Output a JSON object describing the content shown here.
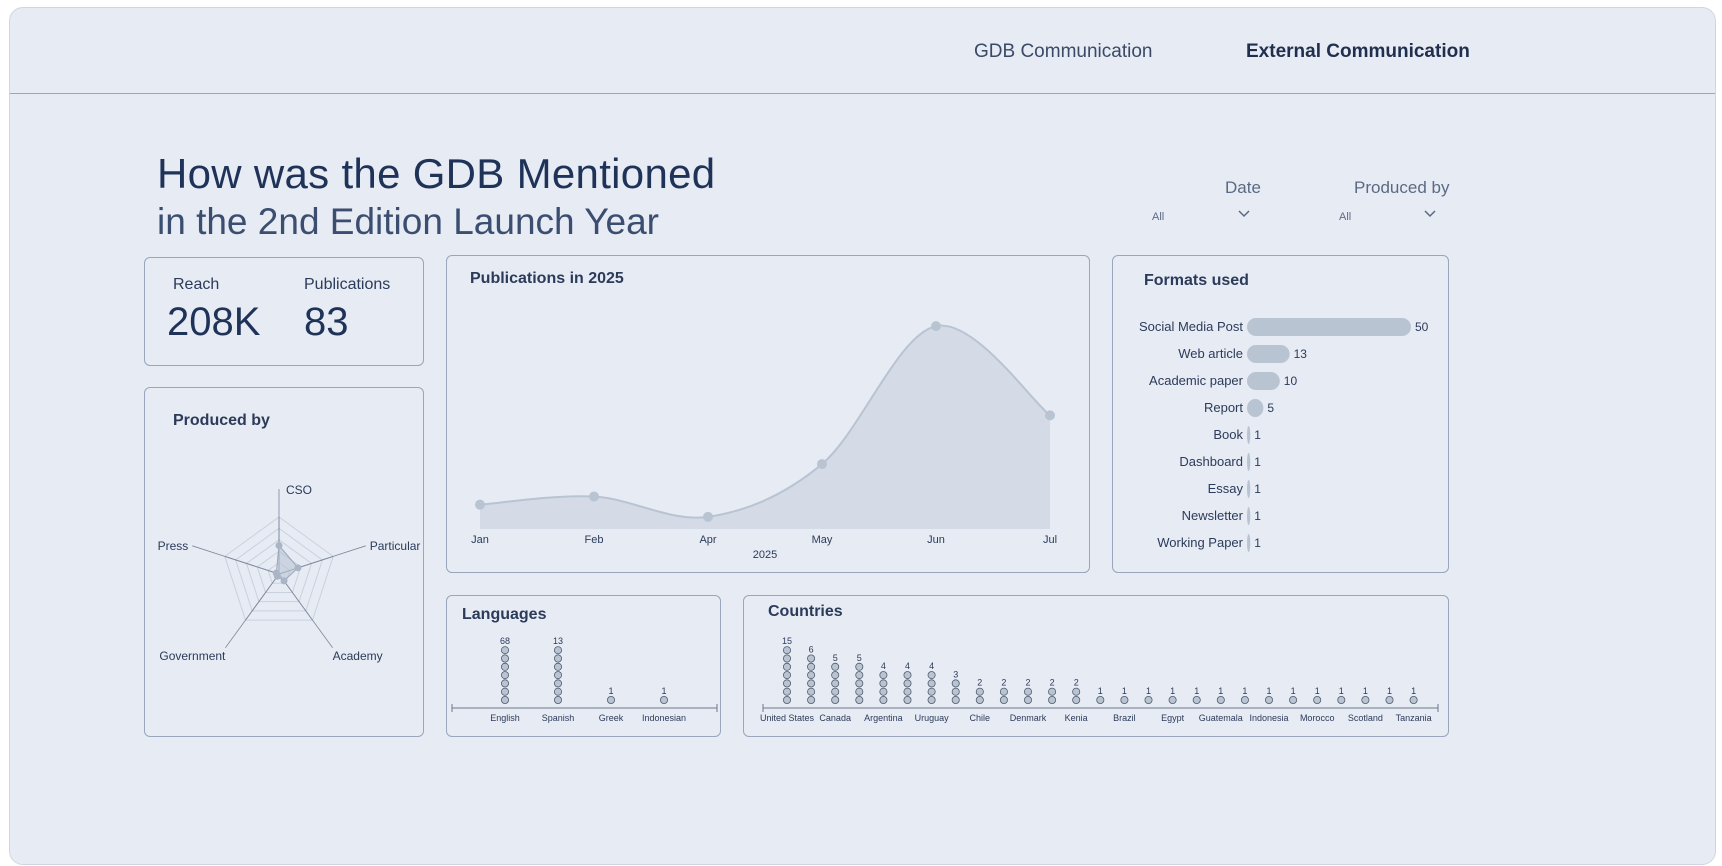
{
  "nav": {
    "tabs": [
      {
        "label": "GDB Communication",
        "active": false
      },
      {
        "label": "External Communication",
        "active": true
      }
    ]
  },
  "header": {
    "title": "How was the GDB Mentioned",
    "subtitle": "in the 2nd Edition Launch Year"
  },
  "filters": {
    "date": {
      "label": "Date",
      "value": "All"
    },
    "produced_by": {
      "label": "Produced by",
      "value": "All"
    }
  },
  "kpis": {
    "reach": {
      "label": "Reach",
      "value": "208K"
    },
    "publications": {
      "label": "Publications",
      "value": "83"
    }
  },
  "cards": {
    "produced_by_title": "Produced by",
    "publications_title": "Publications in 2025",
    "formats_title": "Formats used",
    "languages_title": "Languages",
    "countries_title": "Countries"
  },
  "colors": {
    "background": "#e7ebf4",
    "mark": "#b9c4d2",
    "mark_stroke": "#4f5b6e",
    "text": "#1f2f4d"
  },
  "chart_data": [
    {
      "id": "produced_by",
      "type": "radar",
      "axes": [
        "CSO",
        "Particular",
        "Academy",
        "Government",
        "Press"
      ],
      "values": [
        0.5,
        0.35,
        0.15,
        0.05,
        0.05
      ]
    },
    {
      "id": "publications",
      "type": "area",
      "x": [
        "Jan",
        "Feb",
        "Apr",
        "May",
        "Jun",
        "Jul"
      ],
      "values": [
        6,
        8,
        3,
        16,
        50,
        28
      ],
      "xlabel": "2025",
      "ylim": [
        0,
        52
      ]
    },
    {
      "id": "formats",
      "type": "bar",
      "orientation": "horizontal",
      "categories": [
        "Social Media Post",
        "Web article",
        "Academic paper",
        "Report",
        "Book",
        "Dashboard",
        "Essay",
        "Newsletter",
        "Working Paper"
      ],
      "values": [
        50,
        13,
        10,
        5,
        1,
        1,
        1,
        1,
        1
      ]
    },
    {
      "id": "languages",
      "type": "dot",
      "categories": [
        "English",
        "Spanish",
        "Greek",
        "Indonesian"
      ],
      "values": [
        68,
        13,
        1,
        1
      ]
    },
    {
      "id": "countries",
      "type": "dot",
      "categories": [
        "United States",
        "",
        "Canada",
        "",
        "Argentina",
        "",
        "Uruguay",
        "",
        "Chile",
        "",
        "Denmark",
        "",
        "Kenia",
        "",
        "Brazil",
        "",
        "Egypt",
        "",
        "Guatemala",
        "",
        "Indonesia",
        "",
        "Morocco",
        "",
        "Scotland",
        "",
        "Tanzania"
      ],
      "values": [
        15,
        6,
        5,
        5,
        4,
        4,
        4,
        3,
        2,
        2,
        2,
        2,
        2,
        1,
        1,
        1,
        1,
        1,
        1,
        1,
        1,
        1,
        1,
        1,
        1,
        1,
        1
      ]
    }
  ]
}
